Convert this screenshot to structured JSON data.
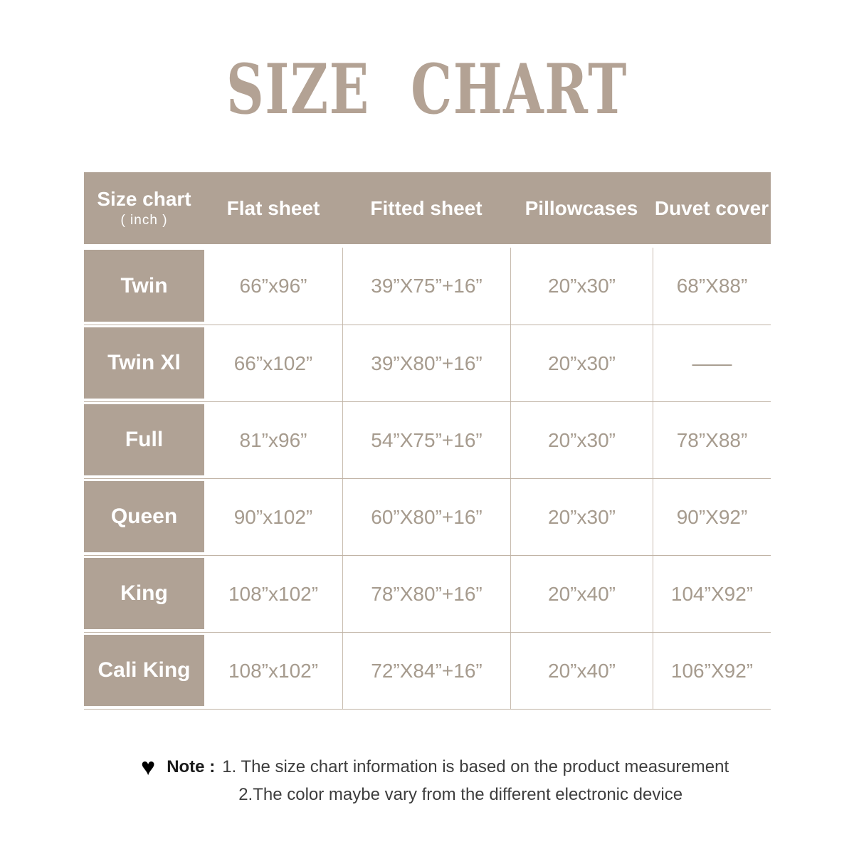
{
  "title": "SIZE CHART",
  "colors": {
    "tan": "#b0a295",
    "tan-title": "#b3a294",
    "line-h": "#c0b3a5",
    "line-v": "#c9bdb0",
    "data-text": "#a69b8e",
    "note-dark": "#1a1a1a",
    "note-text": "#3d3d3d"
  },
  "table": {
    "header": {
      "size_col": {
        "line1": "Size chart",
        "line2": "( inch )"
      },
      "columns": [
        "Flat sheet",
        "Fitted sheet",
        "Pillowcases",
        "Duvet cover"
      ]
    },
    "rows": [
      {
        "size": "Twin",
        "flat_sheet": "66”x96”",
        "fitted_sheet": "39”X75”+16”",
        "pillowcases": "20”x30”",
        "duvet_cover": "68”X88”"
      },
      {
        "size": "Twin Xl",
        "flat_sheet": "66”x102”",
        "fitted_sheet": "39”X80”+16”",
        "pillowcases": "20”x30”",
        "duvet_cover": "——"
      },
      {
        "size": "Full",
        "flat_sheet": "81”x96”",
        "fitted_sheet": "54”X75”+16”",
        "pillowcases": "20”x30”",
        "duvet_cover": "78”X88”"
      },
      {
        "size": "Queen",
        "flat_sheet": "90”x102”",
        "fitted_sheet": "60”X80”+16”",
        "pillowcases": "20”x30”",
        "duvet_cover": "90”X92”"
      },
      {
        "size": "King",
        "flat_sheet": "108”x102”",
        "fitted_sheet": "78”X80”+16”",
        "pillowcases": "20”x40”",
        "duvet_cover": "104”X92”"
      },
      {
        "size": "Cali King",
        "flat_sheet": "108”x102”",
        "fitted_sheet": "72”X84”+16”",
        "pillowcases": "20”x40”",
        "duvet_cover": "106”X92”"
      }
    ]
  },
  "note": {
    "heart_glyph": "♥",
    "label": "Note :",
    "line1": "1. The size chart information is based on the product measurement",
    "line2": "2.The color maybe vary from the different electronic device"
  }
}
